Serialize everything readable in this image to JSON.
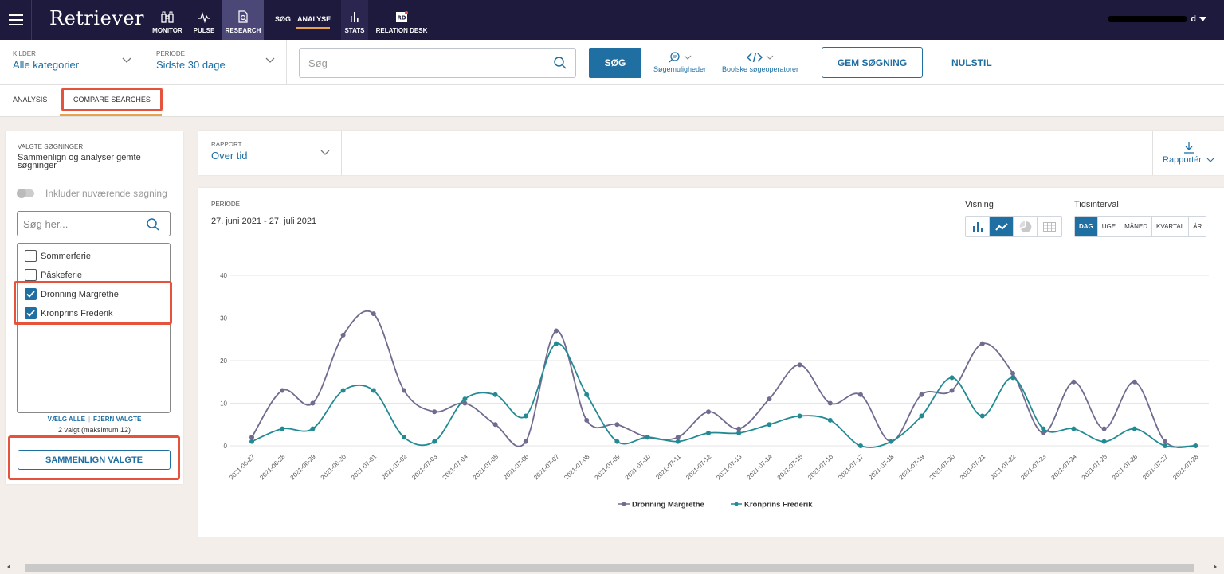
{
  "nav": {
    "logo": "Retriever",
    "items": [
      {
        "label": "MONITOR",
        "icon": "binoculars-icon"
      },
      {
        "label": "PULSE",
        "icon": "pulse-icon"
      },
      {
        "label": "RESEARCH",
        "icon": "document-search-icon"
      },
      {
        "label": "STATS",
        "icon": "bar-chart-icon"
      },
      {
        "label": "RELATION DESK",
        "icon": "rd-icon"
      }
    ],
    "sog": "SØG",
    "analyse": "ANALYSE",
    "user_suffix": "d"
  },
  "search": {
    "kilder_label": "KILDER",
    "kilder_value": "Alle kategorier",
    "periode_label": "PERIODE",
    "periode_value": "Sidste 30 dage",
    "placeholder": "Søg",
    "search_button": "SØG",
    "options_label": "Søgemuligheder",
    "boolean_label": "Boolske søgeoperatorer",
    "save_button": "GEM SØGNING",
    "reset_button": "NULSTIL"
  },
  "tabs": [
    {
      "label": "ANALYSIS"
    },
    {
      "label": "COMPARE SEARCHES"
    }
  ],
  "left_panel": {
    "title": "VALGTE SØGNINGER",
    "subtitle": "Sammenlign og analyser gemte søgninger",
    "toggle_label": "Inkluder nuværende søgning",
    "search_placeholder": "Søg her...",
    "items": [
      {
        "label": "Sommerferie",
        "checked": false
      },
      {
        "label": "Påskeferie",
        "checked": false
      },
      {
        "label": "Dronning Margrethe",
        "checked": true
      },
      {
        "label": "Kronprins Frederik",
        "checked": true
      }
    ],
    "select_all": "VÆLG ALLE",
    "remove_selected": "FJERN VALGTE",
    "count_text": "2 valgt (maksimum 12)",
    "compare_button": "SAMMENLIGN VALGTE"
  },
  "report": {
    "label": "RAPPORT",
    "value": "Over tid",
    "export_label": "Rapportér"
  },
  "chart_panel": {
    "period_label": "PERIODE",
    "period_value": "27. juni 2021 - 27. juli 2021",
    "visning_label": "Visning",
    "tidsinterval_label": "Tidsinterval",
    "view_buttons": [
      "bar-chart-icon",
      "line-chart-icon",
      "pie-chart-icon",
      "table-icon"
    ],
    "active_view": 1,
    "intervals": [
      "DAG",
      "UGE",
      "MÅNED",
      "KVARTAL",
      "ÅR"
    ],
    "active_interval": 0
  },
  "chart_data": {
    "type": "line",
    "x": [
      "2021-06-27",
      "2021-06-28",
      "2021-06-29",
      "2021-06-30",
      "2021-07-01",
      "2021-07-02",
      "2021-07-03",
      "2021-07-04",
      "2021-07-05",
      "2021-07-06",
      "2021-07-07",
      "2021-07-08",
      "2021-07-09",
      "2021-07-10",
      "2021-07-11",
      "2021-07-12",
      "2021-07-13",
      "2021-07-14",
      "2021-07-15",
      "2021-07-16",
      "2021-07-17",
      "2021-07-18",
      "2021-07-19",
      "2021-07-20",
      "2021-07-21",
      "2021-07-22",
      "2021-07-23",
      "2021-07-24",
      "2021-07-25",
      "2021-07-26",
      "2021-07-27",
      "2021-07-28"
    ],
    "series": [
      {
        "name": "Dronning Margrethe",
        "color": "#716b8f",
        "values": [
          2,
          13,
          10,
          26,
          31,
          13,
          8,
          10,
          5,
          1,
          27,
          6,
          5,
          2,
          2,
          8,
          4,
          11,
          19,
          10,
          12,
          1,
          12,
          13,
          24,
          17,
          3,
          15,
          4,
          15,
          1,
          0
        ]
      },
      {
        "name": "Kronprins Frederik",
        "color": "#238a93",
        "values": [
          1,
          4,
          4,
          13,
          13,
          2,
          1,
          11,
          12,
          7,
          24,
          12,
          1,
          2,
          1,
          3,
          3,
          5,
          7,
          6,
          0,
          1,
          7,
          16,
          7,
          16,
          4,
          4,
          1,
          4,
          0,
          0
        ]
      }
    ],
    "yticks": [
      "0",
      "10",
      "20",
      "30",
      "40"
    ],
    "ylim": [
      0,
      40
    ],
    "grid": true,
    "legend": "bottom-center"
  }
}
